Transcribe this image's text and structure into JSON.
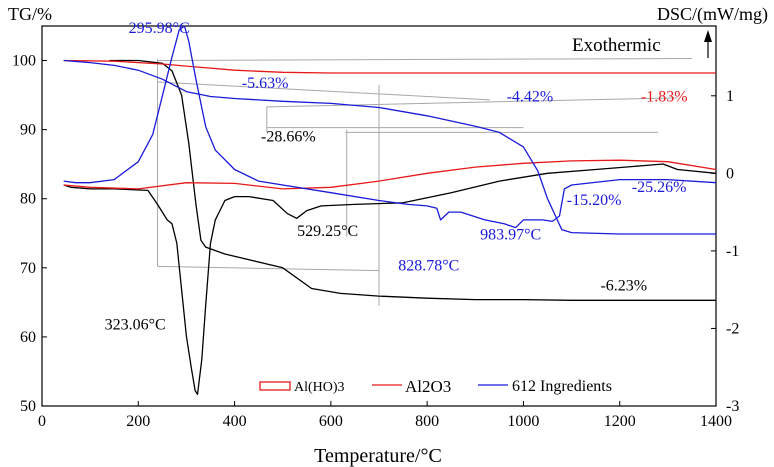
{
  "chart_data": {
    "type": "line",
    "xlabel": "Temperature/°C",
    "y_left_label": "TG/%",
    "y_right_label": "DSC/(mW/mg)",
    "exothermic_label": "Exothermic",
    "xlim": [
      0,
      1400
    ],
    "y_left_lim": [
      50,
      105
    ],
    "y_right_lim": [
      -3,
      1.9
    ],
    "x_ticks": [
      "0",
      "200",
      "400",
      "600",
      "800",
      "1000",
      "1200",
      "1400"
    ],
    "y_left_ticks": [
      "50",
      "60",
      "70",
      "80",
      "90",
      "100"
    ],
    "y_right_ticks": [
      "-3",
      "-2",
      "-1",
      "0",
      "1"
    ],
    "legend": {
      "position": "bottom-center",
      "entries": [
        {
          "label": "Al(HO)3",
          "color": "#e8191a",
          "marker": "box"
        },
        {
          "label": "Al2O3",
          "color": "#e8191a",
          "marker": "line"
        },
        {
          "label": "612 Ingredients",
          "color": "#1a1adb",
          "marker": "line"
        }
      ]
    },
    "series": [
      {
        "name": "Al(HO)3 TG",
        "color": "#000000",
        "axis": "left",
        "points": [
          [
            140,
            100
          ],
          [
            200,
            100
          ],
          [
            250,
            99.6
          ],
          [
            270,
            98.5
          ],
          [
            290,
            95
          ],
          [
            305,
            88
          ],
          [
            320,
            79
          ],
          [
            330,
            74
          ],
          [
            340,
            73
          ],
          [
            380,
            72
          ],
          [
            440,
            71
          ],
          [
            500,
            70
          ],
          [
            560,
            67
          ],
          [
            620,
            66.3
          ],
          [
            700,
            65.9
          ],
          [
            800,
            65.6
          ],
          [
            900,
            65.4
          ],
          [
            1000,
            65.4
          ],
          [
            1100,
            65.3
          ],
          [
            1200,
            65.3
          ],
          [
            1300,
            65.3
          ],
          [
            1400,
            65.3
          ]
        ]
      },
      {
        "name": "Al(HO)3 DSC",
        "color": "#000000",
        "axis": "right",
        "points": [
          [
            45,
            -0.15
          ],
          [
            60,
            -0.18
          ],
          [
            100,
            -0.2
          ],
          [
            150,
            -0.2
          ],
          [
            220,
            -0.22
          ],
          [
            240,
            -0.4
          ],
          [
            260,
            -0.6
          ],
          [
            270,
            -0.65
          ],
          [
            280,
            -0.9
          ],
          [
            290,
            -1.5
          ],
          [
            300,
            -2.1
          ],
          [
            310,
            -2.5
          ],
          [
            318,
            -2.8
          ],
          [
            323,
            -2.85
          ],
          [
            332,
            -2.4
          ],
          [
            340,
            -1.7
          ],
          [
            350,
            -0.9
          ],
          [
            360,
            -0.6
          ],
          [
            380,
            -0.35
          ],
          [
            400,
            -0.3
          ],
          [
            430,
            -0.3
          ],
          [
            480,
            -0.35
          ],
          [
            510,
            -0.52
          ],
          [
            529,
            -0.58
          ],
          [
            550,
            -0.48
          ],
          [
            580,
            -0.42
          ],
          [
            650,
            -0.4
          ],
          [
            750,
            -0.38
          ],
          [
            850,
            -0.25
          ],
          [
            950,
            -0.1
          ],
          [
            1050,
            0.0
          ],
          [
            1150,
            0.05
          ],
          [
            1250,
            0.1
          ],
          [
            1290,
            0.12
          ],
          [
            1320,
            0.05
          ],
          [
            1400,
            0.0
          ]
        ]
      },
      {
        "name": "Al2O3 TG",
        "color": "#e8191a",
        "axis": "left",
        "points": [
          [
            45,
            100
          ],
          [
            150,
            99.9
          ],
          [
            250,
            99.5
          ],
          [
            300,
            99.2
          ],
          [
            400,
            98.6
          ],
          [
            500,
            98.3
          ],
          [
            600,
            98.2
          ],
          [
            800,
            98.2
          ],
          [
            1000,
            98.2
          ],
          [
            1200,
            98.2
          ],
          [
            1400,
            98.2
          ]
        ]
      },
      {
        "name": "Al2O3 DSC",
        "color": "#e8191a",
        "axis": "right",
        "points": [
          [
            45,
            -0.15
          ],
          [
            100,
            -0.18
          ],
          [
            200,
            -0.2
          ],
          [
            300,
            -0.12
          ],
          [
            400,
            -0.13
          ],
          [
            500,
            -0.2
          ],
          [
            600,
            -0.18
          ],
          [
            700,
            -0.1
          ],
          [
            800,
            0.0
          ],
          [
            900,
            0.08
          ],
          [
            1000,
            0.13
          ],
          [
            1100,
            0.16
          ],
          [
            1200,
            0.17
          ],
          [
            1300,
            0.15
          ],
          [
            1400,
            0.05
          ]
        ]
      },
      {
        "name": "612 Ingredients TG",
        "color": "#1a1adb",
        "axis": "left",
        "points": [
          [
            45,
            100
          ],
          [
            100,
            99.7
          ],
          [
            150,
            99.3
          ],
          [
            200,
            98.6
          ],
          [
            250,
            97.3
          ],
          [
            300,
            95.5
          ],
          [
            350,
            94.8
          ],
          [
            400,
            94.5
          ],
          [
            500,
            94.1
          ],
          [
            600,
            93.8
          ],
          [
            700,
            93.2
          ],
          [
            800,
            92
          ],
          [
            900,
            90.5
          ],
          [
            950,
            89.6
          ],
          [
            1000,
            87.5
          ],
          [
            1030,
            84
          ],
          [
            1050,
            80
          ],
          [
            1070,
            77
          ],
          [
            1080,
            75.5
          ],
          [
            1100,
            75.1
          ],
          [
            1200,
            74.9
          ],
          [
            1300,
            74.9
          ],
          [
            1400,
            74.9
          ]
        ]
      },
      {
        "name": "612 Ingredients DSC",
        "color": "#1a1adb",
        "axis": "right",
        "points": [
          [
            45,
            -0.1
          ],
          [
            70,
            -0.12
          ],
          [
            100,
            -0.12
          ],
          [
            150,
            -0.08
          ],
          [
            200,
            0.15
          ],
          [
            230,
            0.5
          ],
          [
            250,
            1.0
          ],
          [
            270,
            1.5
          ],
          [
            285,
            1.85
          ],
          [
            296,
            1.9
          ],
          [
            305,
            1.7
          ],
          [
            320,
            1.2
          ],
          [
            340,
            0.6
          ],
          [
            360,
            0.3
          ],
          [
            400,
            0.05
          ],
          [
            450,
            -0.1
          ],
          [
            500,
            -0.15
          ],
          [
            600,
            -0.25
          ],
          [
            700,
            -0.35
          ],
          [
            760,
            -0.4
          ],
          [
            800,
            -0.42
          ],
          [
            820,
            -0.45
          ],
          [
            828,
            -0.6
          ],
          [
            845,
            -0.5
          ],
          [
            870,
            -0.5
          ],
          [
            920,
            -0.6
          ],
          [
            960,
            -0.65
          ],
          [
            984,
            -0.7
          ],
          [
            1000,
            -0.6
          ],
          [
            1040,
            -0.6
          ],
          [
            1060,
            -0.62
          ],
          [
            1075,
            -0.55
          ],
          [
            1085,
            -0.2
          ],
          [
            1100,
            -0.15
          ],
          [
            1200,
            -0.08
          ],
          [
            1300,
            -0.08
          ],
          [
            1400,
            -0.12
          ]
        ]
      }
    ],
    "annotations": [
      {
        "text": "295.98°C",
        "color": "#1a1adb",
        "x": 180,
        "y_left": 104
      },
      {
        "text": "-5.63%",
        "color": "#1a1adb",
        "x": 415,
        "y_left": 96
      },
      {
        "text": "-4.42%",
        "color": "#1a1adb",
        "x": 965,
        "y_left": 94.1
      },
      {
        "text": "-1.83%",
        "color": "#e8191a",
        "x": 1244,
        "y_left": 94.1
      },
      {
        "text": "-28.66%",
        "color": "#000000",
        "x": 455,
        "y_left": 88.3
      },
      {
        "text": "529.25°C",
        "color": "#000000",
        "x": 530,
        "y_left": 74.6
      },
      {
        "text": "828.78°C",
        "color": "#1a1adb",
        "x": 740,
        "y_left": 69.6
      },
      {
        "text": "983.97°C",
        "color": "#1a1adb",
        "x": 910,
        "y_left": 74.1
      },
      {
        "text": "-15.20%",
        "color": "#1a1adb",
        "x": 1090,
        "y_left": 79.1
      },
      {
        "text": "-25.26%",
        "color": "#1a1adb",
        "x": 1225,
        "y_left": 81
      },
      {
        "text": "-6.23%",
        "color": "#000000",
        "x": 1160,
        "y_left": 66.7
      },
      {
        "text": "323.06°C",
        "color": "#000000",
        "x": 130,
        "y_left": 61.1
      }
    ]
  }
}
